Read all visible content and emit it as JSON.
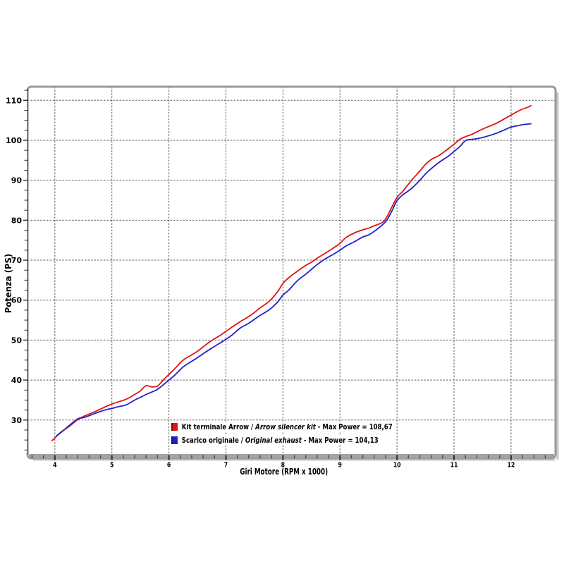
{
  "colors": {
    "arrow_kit": "#e01313",
    "original": "#2020cc",
    "grid": "#5a5a5a",
    "frame": "#999999",
    "axis_bar": "#a3a3a3",
    "shadow": "#c9c9c9",
    "left_axis": "#3a3a3a"
  },
  "legend": {
    "rows": [
      {
        "plain": "Kit terminale Arrow / ",
        "italic": "Arrow silencer kit",
        "suffix": " - Max Power = 108,67"
      },
      {
        "plain": "Scarico originale / ",
        "italic": "Original exhaust",
        "suffix": " - Max Power = 104,13"
      }
    ]
  },
  "chart_data": {
    "type": "line",
    "title": "",
    "xlabel": "Giri Motore (RPM x 1000)",
    "ylabel": "Potenza (PS)",
    "xlim": [
      3.52,
      12.78
    ],
    "ylim": [
      21.5,
      113.4
    ],
    "x_major_ticks": [
      4,
      5,
      6,
      7,
      8,
      9,
      10,
      11,
      12
    ],
    "y_major_ticks": [
      30,
      40,
      50,
      60,
      70,
      80,
      90,
      100,
      110
    ],
    "x_minor_step": 0.2,
    "y_minor_step": 2.5,
    "grid": "dashed",
    "legend_position": "bottom-inside",
    "series": [
      {
        "name": "Kit terminale Arrow / Arrow silencer kit",
        "max_power": 108.67,
        "color": "#e01313",
        "points": [
          [
            3.95,
            24.8
          ],
          [
            4.0,
            25.5
          ],
          [
            4.1,
            26.9
          ],
          [
            4.25,
            28.4
          ],
          [
            4.4,
            30.1
          ],
          [
            4.5,
            30.9
          ],
          [
            4.6,
            31.5
          ],
          [
            4.75,
            32.4
          ],
          [
            4.9,
            33.4
          ],
          [
            5.0,
            34.0
          ],
          [
            5.1,
            34.5
          ],
          [
            5.25,
            35.2
          ],
          [
            5.4,
            36.4
          ],
          [
            5.5,
            37.3
          ],
          [
            5.6,
            38.6
          ],
          [
            5.7,
            38.3
          ],
          [
            5.8,
            38.5
          ],
          [
            5.9,
            40.0
          ],
          [
            6.0,
            41.4
          ],
          [
            6.1,
            42.8
          ],
          [
            6.25,
            45.0
          ],
          [
            6.4,
            46.3
          ],
          [
            6.5,
            47.2
          ],
          [
            6.6,
            48.3
          ],
          [
            6.75,
            49.9
          ],
          [
            6.9,
            51.2
          ],
          [
            7.0,
            52.2
          ],
          [
            7.1,
            53.2
          ],
          [
            7.25,
            54.6
          ],
          [
            7.4,
            55.9
          ],
          [
            7.5,
            56.9
          ],
          [
            7.6,
            58.1
          ],
          [
            7.75,
            59.6
          ],
          [
            7.9,
            62.0
          ],
          [
            8.0,
            64.2
          ],
          [
            8.1,
            65.6
          ],
          [
            8.25,
            67.2
          ],
          [
            8.4,
            68.7
          ],
          [
            8.5,
            69.5
          ],
          [
            8.6,
            70.5
          ],
          [
            8.75,
            71.8
          ],
          [
            8.9,
            73.2
          ],
          [
            9.0,
            74.2
          ],
          [
            9.1,
            75.6
          ],
          [
            9.25,
            76.8
          ],
          [
            9.4,
            77.6
          ],
          [
            9.5,
            78.0
          ],
          [
            9.6,
            78.6
          ],
          [
            9.75,
            79.5
          ],
          [
            9.82,
            80.8
          ],
          [
            9.9,
            83.0
          ],
          [
            10.0,
            85.7
          ],
          [
            10.1,
            87.2
          ],
          [
            10.25,
            89.9
          ],
          [
            10.4,
            92.3
          ],
          [
            10.5,
            94.0
          ],
          [
            10.6,
            95.2
          ],
          [
            10.75,
            96.3
          ],
          [
            10.9,
            97.9
          ],
          [
            11.0,
            99.0
          ],
          [
            11.1,
            100.2
          ],
          [
            11.2,
            100.9
          ],
          [
            11.3,
            101.4
          ],
          [
            11.4,
            102.1
          ],
          [
            11.5,
            102.8
          ],
          [
            11.6,
            103.4
          ],
          [
            11.75,
            104.3
          ],
          [
            11.9,
            105.5
          ],
          [
            12.0,
            106.3
          ],
          [
            12.1,
            107.1
          ],
          [
            12.2,
            107.8
          ],
          [
            12.3,
            108.3
          ],
          [
            12.35,
            108.67
          ]
        ]
      },
      {
        "name": "Scarico originale / Original exhaust",
        "max_power": 104.13,
        "color": "#2020cc",
        "points": [
          [
            4.03,
            26.1
          ],
          [
            4.1,
            26.8
          ],
          [
            4.25,
            28.6
          ],
          [
            4.4,
            30.3
          ],
          [
            4.5,
            30.6
          ],
          [
            4.6,
            31.1
          ],
          [
            4.75,
            31.9
          ],
          [
            4.9,
            32.6
          ],
          [
            5.0,
            32.9
          ],
          [
            5.1,
            33.3
          ],
          [
            5.25,
            33.8
          ],
          [
            5.4,
            35.0
          ],
          [
            5.5,
            35.7
          ],
          [
            5.6,
            36.4
          ],
          [
            5.7,
            37.0
          ],
          [
            5.8,
            37.7
          ],
          [
            5.9,
            38.8
          ],
          [
            6.0,
            40.0
          ],
          [
            6.1,
            41.2
          ],
          [
            6.25,
            43.3
          ],
          [
            6.4,
            44.7
          ],
          [
            6.5,
            45.6
          ],
          [
            6.6,
            46.6
          ],
          [
            6.75,
            48.0
          ],
          [
            6.9,
            49.3
          ],
          [
            7.0,
            50.2
          ],
          [
            7.1,
            51.2
          ],
          [
            7.25,
            53.0
          ],
          [
            7.4,
            54.2
          ],
          [
            7.5,
            55.2
          ],
          [
            7.6,
            56.2
          ],
          [
            7.75,
            57.5
          ],
          [
            7.9,
            59.4
          ],
          [
            8.0,
            61.3
          ],
          [
            8.1,
            62.5
          ],
          [
            8.25,
            64.8
          ],
          [
            8.4,
            66.5
          ],
          [
            8.5,
            67.7
          ],
          [
            8.6,
            68.9
          ],
          [
            8.75,
            70.4
          ],
          [
            8.9,
            71.6
          ],
          [
            9.0,
            72.5
          ],
          [
            9.1,
            73.5
          ],
          [
            9.25,
            74.6
          ],
          [
            9.4,
            75.8
          ],
          [
            9.5,
            76.3
          ],
          [
            9.6,
            77.2
          ],
          [
            9.75,
            78.9
          ],
          [
            9.82,
            80.0
          ],
          [
            9.9,
            82.0
          ],
          [
            10.0,
            84.9
          ],
          [
            10.1,
            86.3
          ],
          [
            10.25,
            87.9
          ],
          [
            10.4,
            90.0
          ],
          [
            10.5,
            91.6
          ],
          [
            10.6,
            92.9
          ],
          [
            10.75,
            94.6
          ],
          [
            10.9,
            96.0
          ],
          [
            11.0,
            97.2
          ],
          [
            11.1,
            98.4
          ],
          [
            11.2,
            99.9
          ],
          [
            11.3,
            100.2
          ],
          [
            11.4,
            100.4
          ],
          [
            11.5,
            100.7
          ],
          [
            11.6,
            101.1
          ],
          [
            11.75,
            101.8
          ],
          [
            11.9,
            102.7
          ],
          [
            12.0,
            103.3
          ],
          [
            12.1,
            103.6
          ],
          [
            12.2,
            103.9
          ],
          [
            12.3,
            104.05
          ],
          [
            12.35,
            104.13
          ]
        ]
      }
    ]
  }
}
